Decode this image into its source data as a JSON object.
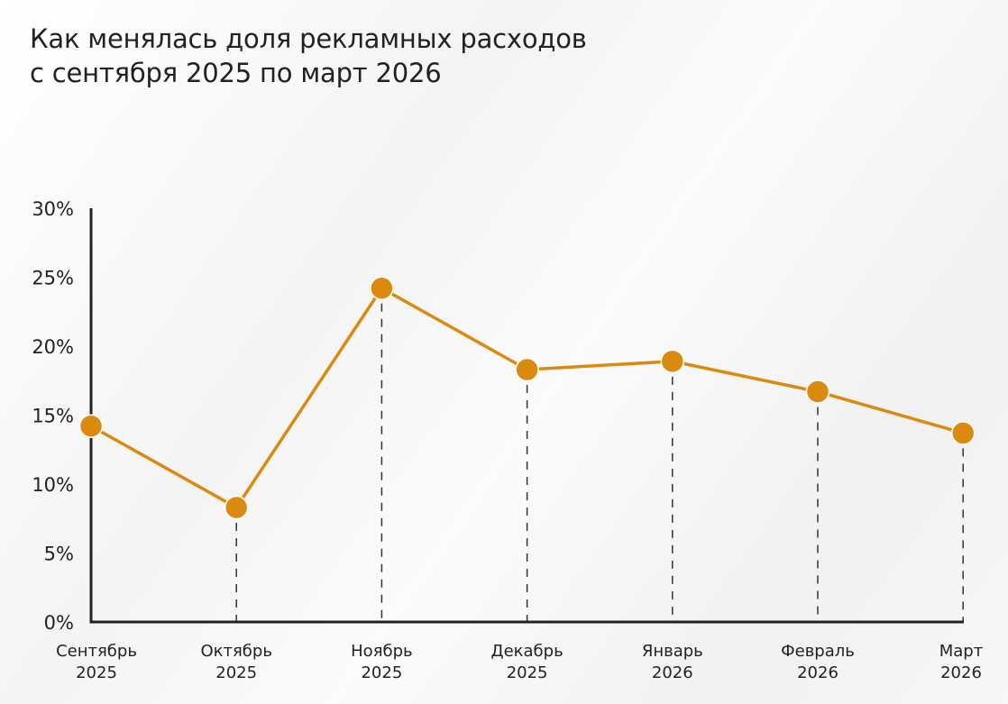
{
  "header": {
    "title_line1": "Как менялась доля рекламных расходов",
    "title_line2": "с сентября 2025 по март 2026"
  },
  "chart_data": {
    "type": "line",
    "title": "Как менялась доля рекламных расходов с сентября 2025 по март 2026",
    "categories": [
      [
        "Сентябрь",
        "2025"
      ],
      [
        "Октябрь",
        "2025"
      ],
      [
        "Ноябрь",
        "2025"
      ],
      [
        "Декабрь",
        "2025"
      ],
      [
        "Январь",
        "2026"
      ],
      [
        "Февраль",
        "2026"
      ],
      [
        "Март",
        "2026"
      ]
    ],
    "series": [
      {
        "values": [
          14.2,
          8.3,
          24.2,
          18.3,
          18.9,
          16.7,
          13.7
        ]
      }
    ],
    "ylim": [
      0,
      30
    ],
    "yticks": [
      0,
      5,
      10,
      15,
      20,
      25,
      30
    ],
    "ytick_labels": [
      "0%",
      "5%",
      "10%",
      "15%",
      "20%",
      "25%",
      "30%"
    ],
    "xlabel": "",
    "ylabel": "",
    "grid": false,
    "drop_lines": "dashed",
    "legend": "none",
    "colors": {
      "line": "#DA8A0E",
      "marker": "#DA8A0E",
      "axis": "#222222",
      "drop_line": "#333333"
    }
  }
}
